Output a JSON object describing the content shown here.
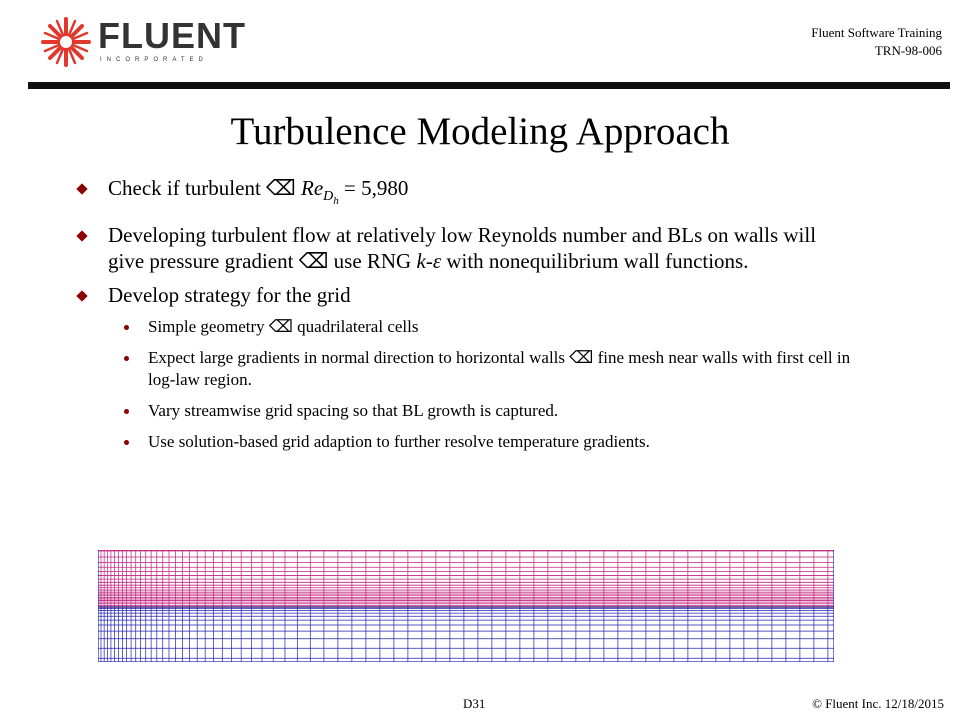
{
  "header": {
    "logo_word": "FLUENT",
    "logo_sub": "INCORPORATED",
    "line1": "Fluent Software Training",
    "line2": "TRN-98-006"
  },
  "title": "Turbulence Modeling Approach",
  "bullets": {
    "b1": {
      "pre": "Check if turbulent",
      "arrow": "⌫",
      "re": "Re",
      "sub1": "D",
      "sub2": "h",
      "post": "= 5,980"
    },
    "b2": {
      "t1": "Developing turbulent flow at relatively low Reynolds number and BLs on walls will give pressure gradient",
      "arrow": "⌫",
      "t2": "use RNG",
      "k": "k",
      "dash": "-",
      "eps": "ε",
      "t3": "with nonequilibrium wall functions."
    },
    "b3": {
      "text": "Develop strategy for the grid"
    },
    "s1": {
      "t1": "Simple geometry",
      "arrow": "⌫",
      "t2": "quadrilateral cells"
    },
    "s2": {
      "t1": "Expect large gradients in normal direction to horizontal walls",
      "arrow": "⌫",
      "t2": "fine mesh near walls with first cell in log-law region."
    },
    "s3": {
      "text": "Vary streamwise grid spacing so that BL growth is captured."
    },
    "s4": {
      "text": "Use solution-based grid adaption to further resolve temperature gradients."
    }
  },
  "mesh": {
    "upper_color": "#c0237e",
    "lower_color": "#2323b0"
  },
  "footer": {
    "slide": "D31",
    "copyright": "© Fluent Inc. 12/18/2015"
  }
}
